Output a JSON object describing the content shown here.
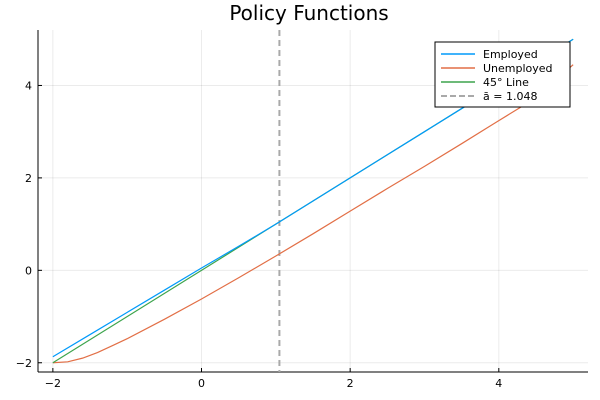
{
  "chart_data": {
    "type": "line",
    "title": "Policy Functions",
    "xlabel": "",
    "ylabel": "",
    "xlim": [
      -2.2,
      5.2
    ],
    "ylim": [
      -2.2,
      5.2
    ],
    "xticks": [
      -2,
      0,
      2,
      4
    ],
    "yticks": [
      -2,
      0,
      2,
      4
    ],
    "xtick_labels": [
      "−2",
      "0",
      "2",
      "4"
    ],
    "ytick_labels": [
      "−2",
      "0",
      "2",
      "4"
    ],
    "grid": true,
    "legend_position": "top-right",
    "series": [
      {
        "name": "Employed",
        "color": "#009AFA",
        "style": "solid",
        "x": [
          -2.0,
          -1.5,
          -1.0,
          -0.5,
          0.0,
          0.5,
          1.0,
          1.5,
          2.0,
          2.5,
          3.0,
          3.5,
          4.0,
          4.5,
          5.0
        ],
        "y": [
          -1.87,
          -1.39,
          -0.91,
          -0.43,
          0.05,
          0.52,
          1.0,
          1.5,
          2.0,
          2.5,
          3.0,
          3.5,
          4.0,
          4.5,
          5.0
        ]
      },
      {
        "name": "Unemployed",
        "color": "#E26F46",
        "style": "solid",
        "x": [
          -2.0,
          -1.8,
          -1.6,
          -1.4,
          -1.2,
          -1.0,
          -0.5,
          0.0,
          0.5,
          1.0,
          1.5,
          2.0,
          2.5,
          3.0,
          3.5,
          4.0,
          4.5,
          5.0
        ],
        "y": [
          -2.0,
          -1.98,
          -1.9,
          -1.78,
          -1.63,
          -1.48,
          -1.06,
          -0.62,
          -0.16,
          0.31,
          0.79,
          1.28,
          1.77,
          2.25,
          2.74,
          3.24,
          3.73,
          4.45
        ]
      },
      {
        "name": "45° Line",
        "color": "#3DA44D",
        "style": "solid",
        "x": [
          -2.0,
          5.0
        ],
        "y": [
          -2.0,
          5.0
        ]
      },
      {
        "name": "ā = 1.048",
        "color": "#A9A9A9",
        "style": "dashed",
        "vline_x": 1.048
      }
    ]
  }
}
